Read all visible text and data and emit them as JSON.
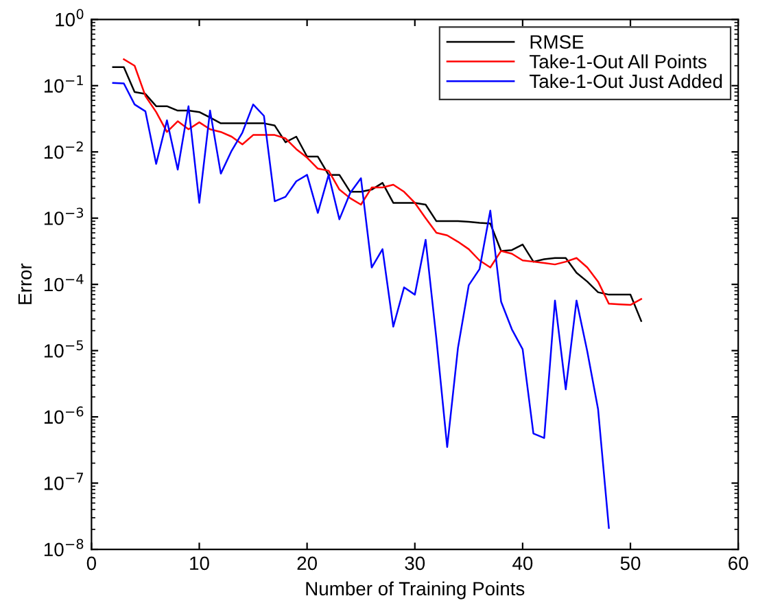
{
  "chart_data": {
    "type": "line",
    "xlabel": "Number of Training Points",
    "ylabel": "Error",
    "log": "y",
    "grid": false,
    "legend": "top right",
    "line_style": "solid",
    "marker": "none",
    "xlim": [
      0,
      60
    ],
    "xticks": [
      0,
      10,
      20,
      30,
      40,
      50,
      60
    ],
    "ylim": [
      1e-08,
      1
    ],
    "yticks": [
      {
        "value": 1e-08,
        "label": "10$^{−8}$"
      },
      {
        "value": 1e-07,
        "label": "10$^{−7}$"
      },
      {
        "value": 1e-06,
        "label": "10$^{−6}$"
      },
      {
        "value": 1e-05,
        "label": "10$^{−5}$"
      },
      {
        "value": 0.0001,
        "label": "10$^{−4}$"
      },
      {
        "value": 0.001,
        "label": "10$^{−3}$"
      },
      {
        "value": 0.01,
        "label": "10$^{−2}$"
      },
      {
        "value": 0.1,
        "label": "10$^{−1}$"
      },
      {
        "value": 1,
        "label": "10$^{0}$"
      }
    ],
    "series": [
      {
        "name": "RMSE",
        "color": "#000000",
        "x": [
          2,
          3,
          4,
          5,
          6,
          7,
          8,
          9,
          10,
          11,
          12,
          13,
          14,
          15,
          16,
          17,
          18,
          19,
          20,
          21,
          22,
          23,
          24,
          25,
          26,
          27,
          28,
          29,
          30,
          31,
          32,
          33,
          34,
          35,
          36,
          37,
          38,
          39,
          40,
          41,
          42,
          43,
          44,
          45,
          46,
          47,
          48,
          49,
          50,
          51
        ],
        "values": [
          0.19,
          0.19,
          0.08,
          0.075,
          0.049,
          0.049,
          0.042,
          0.042,
          0.04,
          0.033,
          0.027,
          0.027,
          0.027,
          0.027,
          0.027,
          0.025,
          0.014,
          0.017,
          0.0085,
          0.0085,
          0.0045,
          0.0045,
          0.0025,
          0.0025,
          0.0027,
          0.0034,
          0.0017,
          0.0017,
          0.0017,
          0.0016,
          0.0009,
          0.0009,
          0.0009,
          0.00088,
          0.00085,
          0.00083,
          0.00032,
          0.00033,
          0.0004,
          0.00022,
          0.00024,
          0.00025,
          0.00025,
          0.00015,
          0.00011,
          7.6e-05,
          7e-05,
          7e-05,
          7e-05,
          2.8e-05
        ]
      },
      {
        "name": "Take-1-Out All Points",
        "color": "#ff0000",
        "x": [
          3,
          4,
          5,
          6,
          7,
          8,
          9,
          10,
          11,
          12,
          13,
          14,
          15,
          16,
          17,
          18,
          19,
          20,
          21,
          22,
          23,
          24,
          25,
          26,
          27,
          28,
          29,
          30,
          31,
          32,
          33,
          34,
          35,
          36,
          37,
          38,
          39,
          40,
          41,
          42,
          43,
          44,
          45,
          46,
          47,
          48,
          49,
          50,
          51
        ],
        "values": [
          0.25,
          0.2,
          0.07,
          0.04,
          0.02,
          0.029,
          0.022,
          0.028,
          0.022,
          0.02,
          0.017,
          0.013,
          0.018,
          0.018,
          0.018,
          0.016,
          0.011,
          0.0082,
          0.0056,
          0.0052,
          0.0027,
          0.002,
          0.0016,
          0.0029,
          0.0029,
          0.0032,
          0.0025,
          0.0017,
          0.001,
          0.0006,
          0.00055,
          0.00044,
          0.00034,
          0.00023,
          0.00018,
          0.00032,
          0.00029,
          0.00023,
          0.00022,
          0.00021,
          0.0002,
          0.00022,
          0.00025,
          0.00018,
          0.00011,
          5.1e-05,
          5e-05,
          4.9e-05,
          6e-05
        ]
      },
      {
        "name": "Take-1-Out Just Added",
        "color": "#0000ff",
        "x": [
          2,
          3,
          4,
          5,
          6,
          7,
          8,
          9,
          10,
          11,
          12,
          13,
          14,
          15,
          16,
          17,
          18,
          19,
          20,
          21,
          22,
          23,
          24,
          25,
          26,
          27,
          28,
          29,
          30,
          31,
          32,
          33,
          34,
          35,
          36,
          37,
          38,
          39,
          40,
          41,
          42,
          43,
          44,
          45,
          46,
          47,
          48
        ],
        "values": [
          0.11,
          0.108,
          0.052,
          0.041,
          0.0066,
          0.03,
          0.0054,
          0.049,
          0.0017,
          0.042,
          0.0047,
          0.0104,
          0.0196,
          0.052,
          0.035,
          0.0018,
          0.0021,
          0.0036,
          0.0045,
          0.0012,
          0.0045,
          0.00096,
          0.0024,
          0.004,
          0.00018,
          0.00034,
          2.3e-05,
          9e-05,
          7e-05,
          0.00047,
          1.5e-05,
          3.5e-07,
          1.1e-05,
          9.7e-05,
          0.00017,
          0.0013,
          5.5e-05,
          2.1e-05,
          1.05e-05,
          5.6e-07,
          4.8e-07,
          5.7e-05,
          2.6e-06,
          5.7e-05,
          9.7e-06,
          1.3e-06,
          2.1e-08
        ]
      }
    ]
  }
}
